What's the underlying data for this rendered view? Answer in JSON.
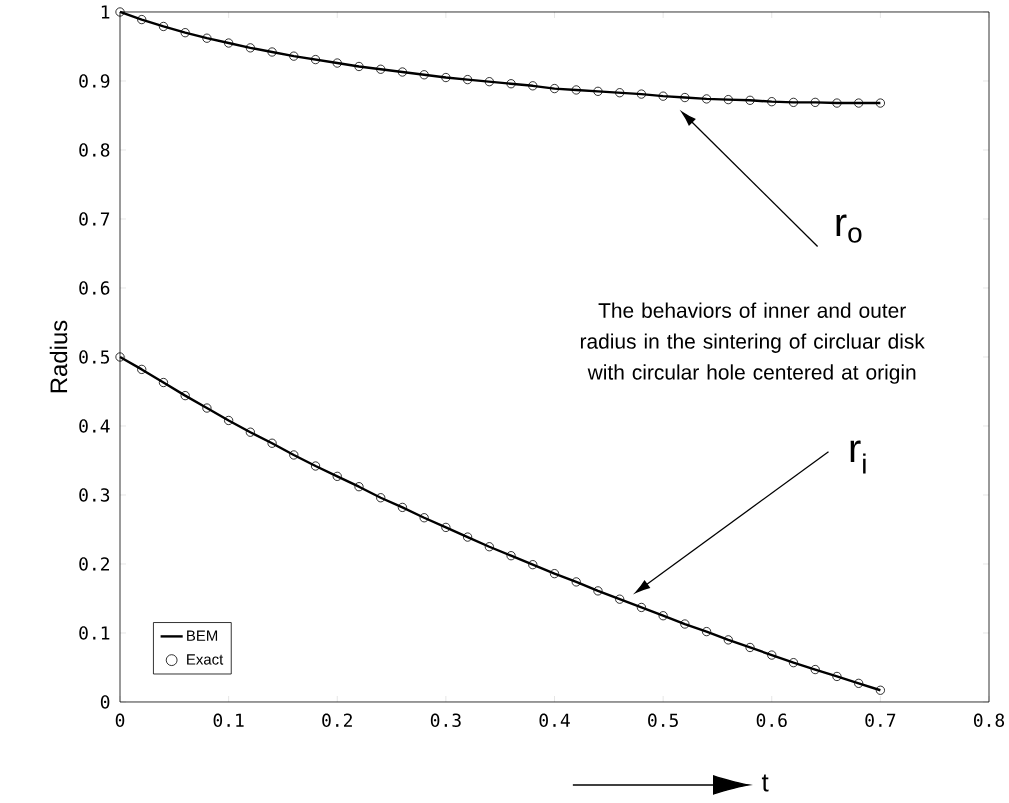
{
  "chart_data": {
    "type": "line",
    "xlabel": "t",
    "ylabel": "Radius",
    "x": [
      0,
      0.02,
      0.04,
      0.06,
      0.08,
      0.1,
      0.12,
      0.14,
      0.16,
      0.18,
      0.2,
      0.22,
      0.24,
      0.26,
      0.28,
      0.3,
      0.32,
      0.34,
      0.36,
      0.38,
      0.4,
      0.42,
      0.44,
      0.46,
      0.48,
      0.5,
      0.52,
      0.54,
      0.56,
      0.58,
      0.6,
      0.62,
      0.64,
      0.66,
      0.68,
      0.7
    ],
    "series": [
      {
        "name": "BEM",
        "color": "#000000",
        "values": [
          1.0,
          0.989,
          0.979,
          0.97,
          0.962,
          0.955,
          0.948,
          0.942,
          0.936,
          0.931,
          0.926,
          0.921,
          0.917,
          0.913,
          0.909,
          0.905,
          0.902,
          0.899,
          0.896,
          0.893,
          0.889,
          0.887,
          0.885,
          0.883,
          0.881,
          0.878,
          0.876,
          0.874,
          0.873,
          0.872,
          0.87,
          0.869,
          0.869,
          0.868,
          0.868,
          0.868
        ]
      },
      {
        "color": "#000000",
        "values": [
          0.5,
          0.482,
          0.463,
          0.444,
          0.426,
          0.408,
          0.391,
          0.375,
          0.358,
          0.342,
          0.327,
          0.312,
          0.296,
          0.282,
          0.267,
          0.253,
          0.239,
          0.225,
          0.212,
          0.199,
          0.186,
          0.174,
          0.161,
          0.149,
          0.137,
          0.125,
          0.113,
          0.102,
          0.09,
          0.079,
          0.068,
          0.057,
          0.047,
          0.037,
          0.027,
          0.017
        ]
      },
      {
        "name": "Exact",
        "type": "scatter",
        "marker": "circle",
        "color": "#000000",
        "values": [
          1.0,
          0.989,
          0.979,
          0.97,
          0.962,
          0.955,
          0.948,
          0.942,
          0.936,
          0.931,
          0.926,
          0.921,
          0.917,
          0.913,
          0.909,
          0.905,
          0.902,
          0.899,
          0.896,
          0.893,
          0.889,
          0.887,
          0.885,
          0.883,
          0.881,
          0.878,
          0.876,
          0.874,
          0.873,
          0.872,
          0.87,
          0.869,
          0.869,
          0.868,
          0.868,
          0.868
        ]
      },
      {
        "type": "scatter",
        "marker": "circle",
        "color": "#000000",
        "values": [
          0.5,
          0.482,
          0.463,
          0.444,
          0.426,
          0.408,
          0.391,
          0.375,
          0.358,
          0.342,
          0.327,
          0.312,
          0.296,
          0.282,
          0.267,
          0.253,
          0.239,
          0.225,
          0.212,
          0.199,
          0.186,
          0.174,
          0.161,
          0.149,
          0.137,
          0.125,
          0.113,
          0.102,
          0.09,
          0.079,
          0.068,
          0.057,
          0.047,
          0.037,
          0.027,
          0.017
        ]
      }
    ],
    "xlim": [
      0,
      0.8
    ],
    "ylim": [
      0,
      1
    ],
    "xticks": [
      0,
      0.1,
      0.2,
      0.3,
      0.4,
      0.5,
      0.6,
      0.7,
      0.8
    ],
    "yticks": [
      0,
      0.1,
      0.2,
      0.3,
      0.4,
      0.5,
      0.6,
      0.7,
      0.8,
      0.9,
      1
    ],
    "grid": false,
    "legend": "bottom left",
    "annotations": [
      "r$_{o}$",
      "r$_{i}$",
      "The behaviors of inner and outer radius in the sintering of circluar disk with circular hole centered at origin"
    ]
  }
}
